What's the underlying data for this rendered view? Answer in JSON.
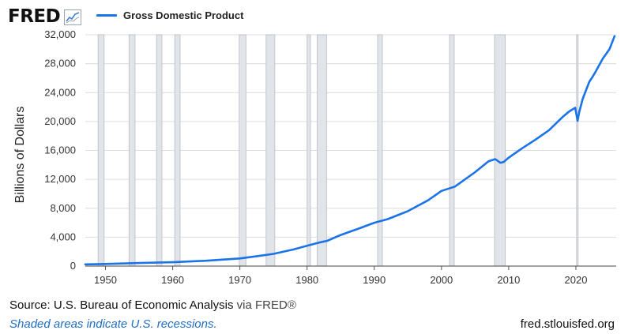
{
  "header": {
    "logo_text": "FRED",
    "logo_icon": "trend-line-icon",
    "series_label": "Gross Domestic Product"
  },
  "colors": {
    "series": "#1a73e8",
    "recession_fill": "#e1e4e8",
    "recession_stroke": "#b8bcc2",
    "gridline": "#dcdcdc",
    "note": "#1f6fc5"
  },
  "chart_data": {
    "type": "line",
    "title": "",
    "xlabel": "",
    "ylabel": "Billions of Dollars",
    "xlim": [
      1947,
      2026
    ],
    "ylim": [
      0,
      32000
    ],
    "grid": true,
    "legend": "top-left",
    "x_ticks": [
      1950,
      1960,
      1970,
      1980,
      1990,
      2000,
      2010,
      2020
    ],
    "y_ticks": [
      0,
      4000,
      8000,
      12000,
      16000,
      20000,
      24000,
      28000,
      32000
    ],
    "y_tick_labels": [
      "0",
      "4,000",
      "8,000",
      "12,000",
      "16,000",
      "20,000",
      "24,000",
      "28,000",
      "32,000"
    ],
    "recessions": [
      [
        1948.9,
        1949.8
      ],
      [
        1953.5,
        1954.4
      ],
      [
        1957.6,
        1958.4
      ],
      [
        1960.3,
        1961.1
      ],
      [
        1969.9,
        1970.9
      ],
      [
        1973.9,
        1975.2
      ],
      [
        1980.0,
        1980.5
      ],
      [
        1981.5,
        1982.9
      ],
      [
        1990.5,
        1991.2
      ],
      [
        2001.2,
        2001.9
      ],
      [
        2007.9,
        2009.5
      ],
      [
        2020.1,
        2020.3
      ]
    ],
    "series": [
      {
        "name": "Gross Domestic Product",
        "x": [
          1947,
          1950,
          1955,
          1960,
          1965,
          1970,
          1973,
          1975,
          1978,
          1980,
          1982,
          1983,
          1985,
          1988,
          1990,
          1992,
          1995,
          1998,
          2000,
          2002,
          2005,
          2007,
          2008,
          2008.75,
          2009.25,
          2010,
          2012,
          2014,
          2016,
          2018,
          2019,
          2019.9,
          2020.25,
          2020.5,
          2021,
          2021.5,
          2022,
          2022.5,
          2023,
          2024,
          2025,
          2025.75
        ],
        "y": [
          245,
          300,
          430,
          540,
          740,
          1060,
          1430,
          1690,
          2300,
          2820,
          3300,
          3500,
          4300,
          5300,
          6000,
          6500,
          7600,
          9100,
          10400,
          11000,
          13000,
          14500,
          14800,
          14300,
          14400,
          15000,
          16300,
          17500,
          18800,
          20600,
          21400,
          21900,
          20100,
          21300,
          23100,
          24300,
          25500,
          26200,
          27000,
          28700,
          30000,
          31800
        ]
      }
    ]
  },
  "footer": {
    "source_prefix": "Source: U.S. Bureau of Economic Analysis ",
    "source_via": "via FRED®",
    "note": "Shaded areas indicate U.S. recessions.",
    "site": "fred.stlouisfed.org"
  }
}
